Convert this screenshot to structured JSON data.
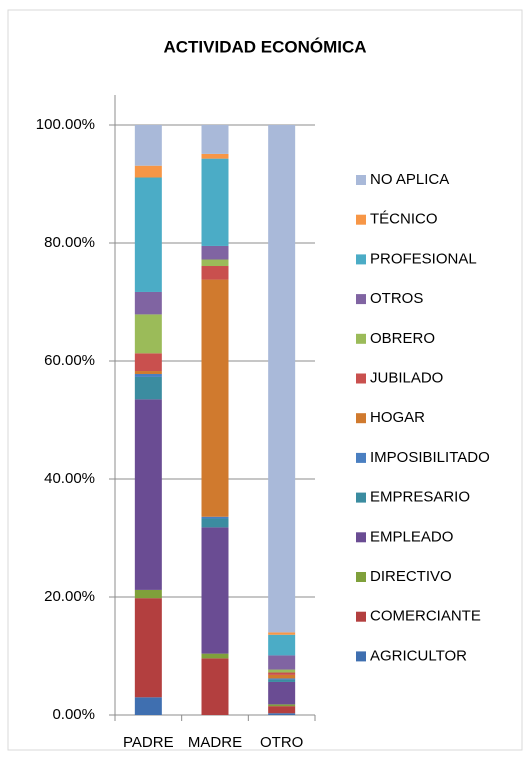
{
  "chart_data": {
    "type": "stacked_bar",
    "title": "ACTIVIDAD ECONÓMICA",
    "categories": [
      "PADRE",
      "MADRE",
      "OTRO"
    ],
    "series": [
      {
        "name": "AGRICULTOR",
        "color": "#3f6fb0",
        "values": [
          3,
          0,
          0.3
        ]
      },
      {
        "name": "COMERCIANTE",
        "color": "#b33f3f",
        "values": [
          16.8,
          9.6,
          1.2
        ]
      },
      {
        "name": "DIRECTIVO",
        "color": "#7fa03b",
        "values": [
          1.4,
          0.8,
          0.3
        ]
      },
      {
        "name": "EMPLEADO",
        "color": "#6a4c93",
        "values": [
          32.3,
          21.4,
          3.8
        ]
      },
      {
        "name": "EMPRESARIO",
        "color": "#3b8ca0",
        "values": [
          3.8,
          1.5,
          0.4
        ]
      },
      {
        "name": "IMPOSIBILITADO",
        "color": "#4a7fc1",
        "values": [
          0.5,
          0.3,
          0.2
        ]
      },
      {
        "name": "HOGAR",
        "color": "#d07a2e",
        "values": [
          0.5,
          40.2,
          0.6
        ]
      },
      {
        "name": "JUBILADO",
        "color": "#c9504e",
        "values": [
          3,
          2.3,
          0.4
        ]
      },
      {
        "name": "OBRERO",
        "color": "#9bbb59",
        "values": [
          6.6,
          1.1,
          0.5
        ]
      },
      {
        "name": "OTROS",
        "color": "#8064a2",
        "values": [
          3.8,
          2.3,
          2.4
        ]
      },
      {
        "name": "PROFESIONAL",
        "color": "#4bacc6",
        "values": [
          19.4,
          14.8,
          3.5
        ]
      },
      {
        "name": "TÉCNICO",
        "color": "#f79646",
        "values": [
          2,
          0.8,
          0.4
        ]
      },
      {
        "name": "NO APLICA",
        "color": "#a9b9d9",
        "values": [
          6.9,
          4.9,
          86
        ]
      }
    ],
    "ylim": [
      0,
      100
    ],
    "yticks": [
      {
        "value": 0,
        "label": "0.00%"
      },
      {
        "value": 20,
        "label": "20.00%"
      },
      {
        "value": 40,
        "label": "40.00%"
      },
      {
        "value": 60,
        "label": "60.00%"
      },
      {
        "value": 80,
        "label": "80.00%"
      },
      {
        "value": 100,
        "label": "100.00%"
      }
    ],
    "grid": true,
    "legend": "right"
  }
}
